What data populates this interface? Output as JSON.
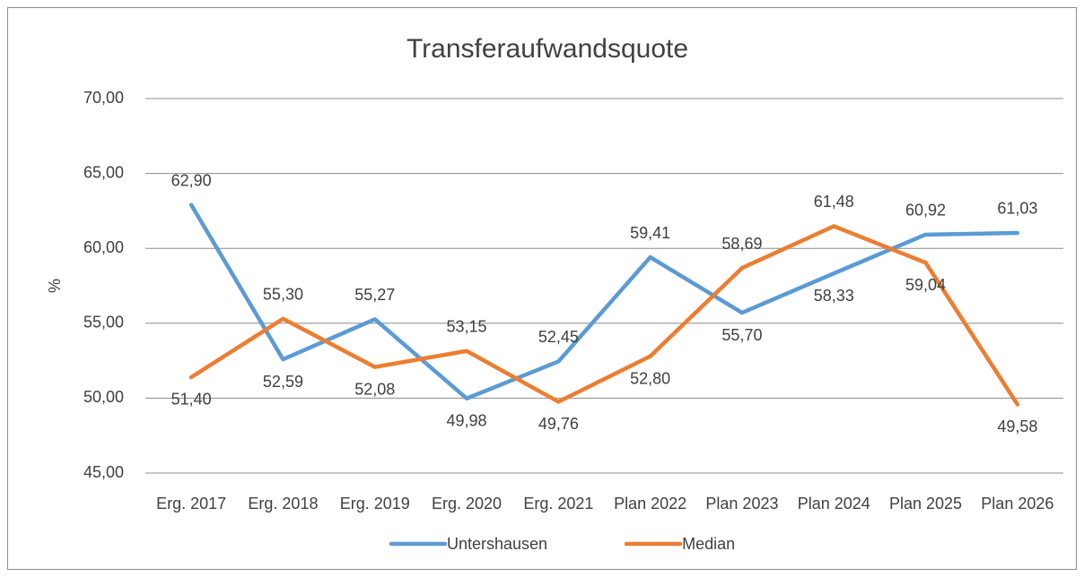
{
  "chart_data": {
    "type": "line",
    "title": "Transferaufwandsquote",
    "y_label": "%",
    "categories": [
      "Erg. 2017",
      "Erg. 2018",
      "Erg. 2019",
      "Erg. 2020",
      "Erg. 2021",
      "Plan 2022",
      "Plan 2023",
      "Plan 2024",
      "Plan 2025",
      "Plan 2026"
    ],
    "series": [
      {
        "name": "Untershausen",
        "color": "#5b9bd5",
        "values": [
          62.9,
          52.59,
          55.27,
          49.98,
          52.45,
          59.41,
          55.7,
          58.33,
          60.92,
          61.03
        ],
        "value_labels": [
          "62,90",
          "52,59",
          "55,27",
          "49,98",
          "52,45",
          "59,41",
          "55,70",
          "58,33",
          "60,92",
          "61,03"
        ]
      },
      {
        "name": "Median",
        "color": "#ed7d31",
        "values": [
          51.4,
          55.3,
          52.08,
          53.15,
          49.76,
          52.8,
          58.69,
          61.48,
          59.04,
          49.58
        ],
        "value_labels": [
          "51,40",
          "55,30",
          "52,08",
          "53,15",
          "49,76",
          "52,80",
          "58,69",
          "61,48",
          "59,04",
          "49,58"
        ]
      }
    ],
    "ylim": [
      45,
      70
    ],
    "yticks": [
      {
        "value": 45,
        "label": "45,00"
      },
      {
        "value": 50,
        "label": "50,00"
      },
      {
        "value": 55,
        "label": "55,00"
      },
      {
        "value": 60,
        "label": "60,00"
      },
      {
        "value": 65,
        "label": "65,00"
      },
      {
        "value": 70,
        "label": "70,00"
      }
    ],
    "grid": true,
    "legend": "bottom"
  }
}
